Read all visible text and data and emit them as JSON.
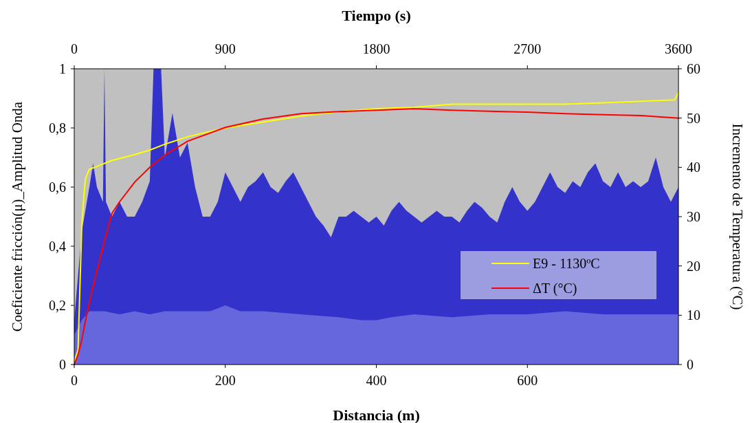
{
  "chart_data": {
    "type": "area",
    "xlabel": "Distancia  (m)",
    "x2label": "Tiempo (s)",
    "ylabel": "Coeficiente fricción(μ)_Amplitud Onda",
    "y2label": "Incremento de Temperatura (ºC)",
    "xlim": [
      0,
      800
    ],
    "xticks": [
      0,
      200,
      400,
      600
    ],
    "x2lim": [
      0,
      3600
    ],
    "x2ticks": [
      0,
      900,
      1800,
      2700,
      3600
    ],
    "ylim": [
      0,
      1
    ],
    "yticks": [
      0,
      {
        "value": 0.2,
        "label": "0,2"
      },
      {
        "value": 0.4,
        "label": "0,4"
      },
      {
        "value": 0.6,
        "label": "0,6"
      },
      {
        "value": 0.8,
        "label": "0,8"
      },
      1
    ],
    "y2lim": [
      0,
      60
    ],
    "y2ticks": [
      0,
      10,
      20,
      30,
      40,
      50,
      60
    ],
    "legend": "bottom right",
    "grid": false,
    "series": [
      {
        "color": "#3333cc",
        "x": [
          0,
          10,
          20,
          25,
          30,
          38,
          40,
          42,
          50,
          60,
          70,
          80,
          90,
          100,
          105,
          115,
          120,
          130,
          140,
          150,
          160,
          170,
          180,
          190,
          200,
          210,
          220,
          230,
          240,
          250,
          260,
          270,
          280,
          290,
          300,
          310,
          320,
          330,
          340,
          350,
          360,
          370,
          380,
          390,
          400,
          410,
          420,
          430,
          440,
          450,
          460,
          470,
          480,
          490,
          500,
          510,
          520,
          530,
          540,
          550,
          560,
          570,
          580,
          590,
          600,
          610,
          620,
          630,
          640,
          650,
          660,
          670,
          680,
          690,
          700,
          710,
          720,
          730,
          740,
          750,
          760,
          770,
          780,
          790,
          800
        ],
        "values": [
          0.15,
          0.45,
          0.6,
          0.68,
          0.6,
          0.55,
          1,
          0.55,
          0.5,
          0.55,
          0.5,
          0.5,
          0.55,
          0.62,
          1,
          1,
          0.7,
          0.85,
          0.7,
          0.75,
          0.6,
          0.5,
          0.5,
          0.55,
          0.65,
          0.6,
          0.55,
          0.6,
          0.62,
          0.65,
          0.6,
          0.58,
          0.62,
          0.65,
          0.6,
          0.55,
          0.5,
          0.47,
          0.43,
          0.5,
          0.5,
          0.52,
          0.5,
          0.48,
          0.5,
          0.47,
          0.52,
          0.55,
          0.52,
          0.5,
          0.48,
          0.5,
          0.52,
          0.5,
          0.5,
          0.48,
          0.52,
          0.55,
          0.53,
          0.5,
          0.48,
          0.55,
          0.6,
          0.55,
          0.52,
          0.55,
          0.6,
          0.65,
          0.6,
          0.58,
          0.62,
          0.6,
          0.65,
          0.68,
          0.62,
          0.6,
          0.65,
          0.6,
          0.62,
          0.6,
          0.62,
          0.7,
          0.6,
          0.55,
          0.6
        ]
      },
      {
        "color": "#6666dd",
        "x": [
          0,
          10,
          20,
          40,
          60,
          80,
          100,
          120,
          150,
          180,
          200,
          220,
          250,
          300,
          350,
          380,
          400,
          420,
          450,
          500,
          550,
          600,
          650,
          700,
          750,
          800
        ],
        "values": [
          0.1,
          0.15,
          0.18,
          0.18,
          0.17,
          0.18,
          0.17,
          0.18,
          0.18,
          0.18,
          0.2,
          0.18,
          0.18,
          0.17,
          0.16,
          0.15,
          0.15,
          0.16,
          0.17,
          0.16,
          0.17,
          0.17,
          0.18,
          0.17,
          0.17,
          0.17
        ]
      },
      {
        "type": "line",
        "name": "E9 - 1130ºC",
        "color": "#ffff00",
        "x": [
          0,
          5,
          10,
          13,
          15,
          20,
          30,
          50,
          80,
          100,
          120,
          150,
          200,
          250,
          300,
          350,
          400,
          450,
          500,
          550,
          600,
          650,
          700,
          750,
          795,
          800
        ],
        "values": [
          0.01,
          0.05,
          0.47,
          0.58,
          0.63,
          0.66,
          0.67,
          0.69,
          0.71,
          0.725,
          0.745,
          0.77,
          0.8,
          0.82,
          0.84,
          0.855,
          0.865,
          0.87,
          0.88,
          0.88,
          0.88,
          0.88,
          0.885,
          0.89,
          0.895,
          0.92
        ]
      },
      {
        "type": "line",
        "name": "ΔT (°C)",
        "color": "#ff0000",
        "axis": "y2",
        "x": [
          0,
          5,
          10,
          15,
          20,
          30,
          40,
          50,
          60,
          80,
          100,
          120,
          150,
          200,
          250,
          300,
          350,
          400,
          450,
          500,
          550,
          600,
          650,
          700,
          750,
          800
        ],
        "values": [
          0,
          2,
          5,
          9,
          12.6,
          19,
          25,
          30.7,
          33,
          37,
          40,
          42.5,
          45.3,
          48.1,
          49.8,
          50.9,
          51.3,
          51.6,
          51.9,
          51.6,
          51.4,
          51.2,
          50.9,
          50.7,
          50.5,
          50
        ]
      }
    ]
  }
}
